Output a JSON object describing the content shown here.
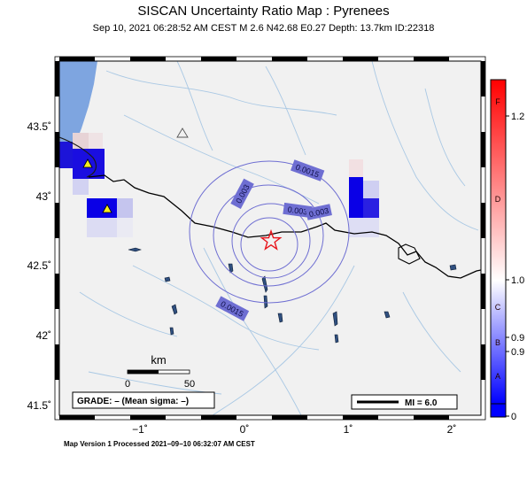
{
  "header": {
    "title": "SISCAN Uncertainty Ratio Map : Pyrenees",
    "subtitle": "Sep 10, 2021 06:28:52 AM CEST   M 2.6   N42.68 E0.27   Depth: 13.7km   ID:22318"
  },
  "map": {
    "lat_ticks": [
      "43.5˚",
      "43˚",
      "42.5˚",
      "42˚",
      "41.5˚"
    ],
    "lon_ticks": [
      "−1˚",
      "0˚",
      "1˚",
      "2˚"
    ],
    "contour_labels": [
      "0.0015",
      "0.003",
      "0.003",
      "0.003",
      "0.0015"
    ],
    "scale_bar": {
      "title": "km",
      "ticks": [
        "0",
        "50"
      ]
    },
    "grade_box": "GRADE: – (Mean sigma: –)",
    "mi_legend": "MI = 6.0",
    "epicenter": {
      "lat": 42.68,
      "lon": 0.27
    },
    "colors": {
      "land": "#f1f1f1",
      "sea": "#7ea5e0",
      "border": "#000000",
      "rivers": "#a9c8e4",
      "contours": "#6e6ed2",
      "epicenter": "#e8141b",
      "high_cell": "#0a00e6",
      "station": "#f7ee1e"
    }
  },
  "colorbar": {
    "letter_labels": [
      "F",
      "D",
      "C",
      "B",
      "A"
    ],
    "value_labels": [
      "1.2",
      "1.0",
      "0.9",
      "0.9",
      "0"
    ],
    "colors": [
      "#ff0000",
      "#ffffff",
      "#0000ff"
    ]
  },
  "footer": {
    "text": "Map Version 1 Processed 2021−09−10 06:32:07 AM CEST"
  }
}
